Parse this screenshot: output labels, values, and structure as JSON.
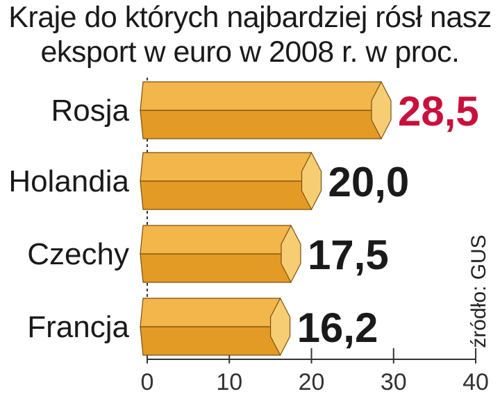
{
  "chart_data": {
    "type": "bar",
    "orientation": "horizontal",
    "title": "Kraje do których najbardziej rósł nasz",
    "subtitle": "eksport w euro w 2008 r. w proc.",
    "categories": [
      "Rosja",
      "Holandia",
      "Czechy",
      "Francja"
    ],
    "values": [
      28.5,
      20.0,
      17.5,
      16.2
    ],
    "value_labels": [
      "28,5",
      "20,0",
      "17,5",
      "16,2"
    ],
    "xticks": [
      "0",
      "10",
      "20",
      "30",
      "40"
    ],
    "xlim": [
      0,
      40
    ],
    "grid": false,
    "source": "źródło: GUS",
    "colors": {
      "bar_top": "#f2b64a",
      "bar_bottom": "#e39b25",
      "bar_cap": "#f7cd74",
      "bar_edge": "#7a4e0c",
      "highlight_label": "#c8103c",
      "label": "#1a1a1a",
      "axis": "#333333"
    }
  }
}
